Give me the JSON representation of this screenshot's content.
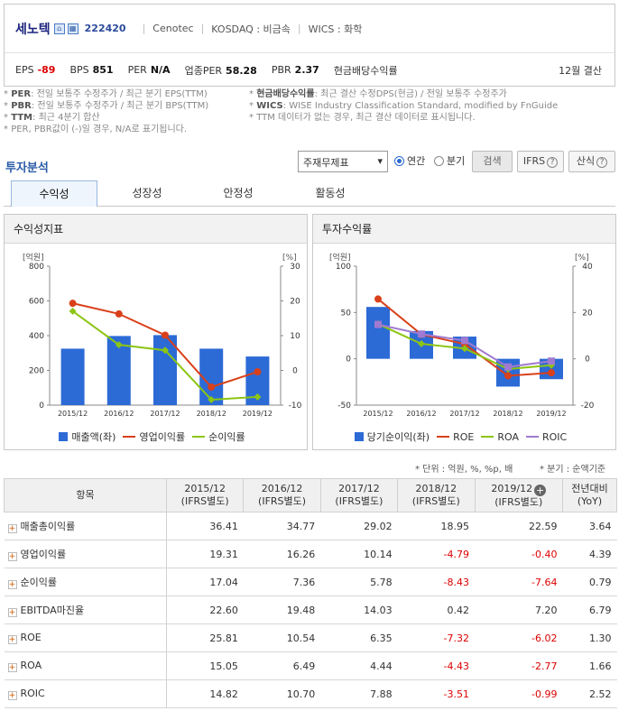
{
  "header": {
    "company": "세노텍",
    "code": "222420",
    "en_name": "Cenotec",
    "market": "KOSDAQ : 비금속",
    "wics": "WICS : 화학",
    "metrics": [
      {
        "label": "EPS",
        "value": "-89"
      },
      {
        "label": "BPS",
        "value": "851"
      },
      {
        "label": "PER",
        "value": "N/A"
      },
      {
        "label": "업종PER",
        "value": "58.28"
      },
      {
        "label": "PBR",
        "value": "2.37"
      }
    ],
    "dividend_label": "현금배당수익률",
    "settle": "12월 결산"
  },
  "notes": {
    "left": [
      {
        "key": "PER",
        "text": ": 전일 보통주 수정주가 / 최근 분기 EPS(TTM)"
      },
      {
        "key": "PBR",
        "text": ": 전일 보통주 수정주가 / 최근 분기 BPS(TTM)"
      },
      {
        "key": "TTM",
        "text": ": 최근 4분기 합산"
      },
      {
        "key": "",
        "text": "PER, PBR값이 (-)일 경우, N/A로 표기됩니다."
      }
    ],
    "right": [
      {
        "key": "현금배당수익률",
        "text": ": 최근 결산 수정DPS(현금) / 전일 보통주 수정주가"
      },
      {
        "key": "WICS",
        "text": ": WISE Industry Classification Standard, modified by FnGuide"
      },
      {
        "key": "",
        "text": "TTM 데이터가 없는 경우, 최근 결산 데이터로 표시됩니다."
      }
    ]
  },
  "section_title": "투자분석",
  "controls": {
    "select": "주재무제표",
    "radio_annual": "연간",
    "radio_quarter": "분기",
    "search": "검색",
    "ifrs": "IFRS",
    "formula": "산식"
  },
  "tabs": [
    "수익성",
    "성장성",
    "안정성",
    "활동성"
  ],
  "chart_left_title": "수익성지표",
  "chart_right_title": "투자수익률",
  "unit_note": "* 단위 : 억원, %, %p, 배",
  "quarter_note": "* 분기 : 순액기준",
  "chart_data": [
    {
      "type": "bar",
      "categories": [
        "2015/12",
        "2016/12",
        "2017/12",
        "2018/12",
        "2019/12"
      ],
      "left_unit": "[억원]",
      "right_unit": "[%]",
      "ylim_left": [
        0,
        800
      ],
      "yticks_left": [
        "800",
        "600",
        "400",
        "200",
        "0"
      ],
      "ylim_right": [
        -10,
        30
      ],
      "yticks_right": [
        "30",
        "20",
        "10",
        "0",
        "-10"
      ],
      "series": [
        {
          "name": "매출액(좌)",
          "type": "bar",
          "axis": "left",
          "color": "#2c6ad6",
          "values": [
            325,
            398,
            403,
            325,
            280
          ]
        },
        {
          "name": "영업이익률",
          "type": "line",
          "axis": "right",
          "color": "#d9401a",
          "values": [
            19.31,
            16.26,
            10.14,
            -4.79,
            -0.4
          ]
        },
        {
          "name": "순이익률",
          "type": "line",
          "axis": "right",
          "color": "#8cc514",
          "values": [
            17.04,
            7.36,
            5.78,
            -8.43,
            -7.64
          ]
        }
      ]
    },
    {
      "type": "bar",
      "categories": [
        "2015/12",
        "2016/12",
        "2017/12",
        "2018/12",
        "2019/12"
      ],
      "left_unit": "[억원]",
      "right_unit": "[%]",
      "ylim_left": [
        -50,
        100
      ],
      "yticks_left": [
        "100",
        "50",
        "0",
        "-50"
      ],
      "ylim_right": [
        -20,
        40
      ],
      "yticks_right": [
        "40",
        "20",
        "0",
        "-20"
      ],
      "series": [
        {
          "name": "당기순이익(좌)",
          "type": "bar",
          "axis": "left",
          "color": "#2c6ad6",
          "values": [
            56,
            30,
            24,
            -30,
            -22
          ]
        },
        {
          "name": "ROE",
          "type": "line",
          "axis": "right",
          "color": "#d9401a",
          "values": [
            25.81,
            10.54,
            6.35,
            -7.32,
            -6.02
          ]
        },
        {
          "name": "ROA",
          "type": "line",
          "axis": "right",
          "color": "#8cc514",
          "values": [
            15.05,
            6.49,
            4.44,
            -4.43,
            -2.77
          ]
        },
        {
          "name": "ROIC",
          "type": "line",
          "axis": "right",
          "color": "#a07ad0",
          "values": [
            14.82,
            10.7,
            7.88,
            -3.51,
            -0.99
          ]
        }
      ]
    }
  ],
  "table": {
    "header_item": "항목",
    "columns": [
      {
        "line1": "2015/12",
        "line2": "(IFRS별도)"
      },
      {
        "line1": "2016/12",
        "line2": "(IFRS별도)"
      },
      {
        "line1": "2017/12",
        "line2": "(IFRS별도)"
      },
      {
        "line1": "2018/12",
        "line2": "(IFRS별도)"
      },
      {
        "line1": "2019/12",
        "line2": "(IFRS별도)"
      },
      {
        "line1": "전년대비",
        "line2": "(YoY)"
      }
    ],
    "rows": [
      {
        "label": "매출총이익률",
        "values": [
          "36.41",
          "34.77",
          "29.02",
          "18.95",
          "22.59",
          "3.64"
        ]
      },
      {
        "label": "영업이익률",
        "values": [
          "19.31",
          "16.26",
          "10.14",
          "-4.79",
          "-0.40",
          "4.39"
        ]
      },
      {
        "label": "순이익률",
        "values": [
          "17.04",
          "7.36",
          "5.78",
          "-8.43",
          "-7.64",
          "0.79"
        ]
      },
      {
        "label": "EBITDA마진율",
        "values": [
          "22.60",
          "19.48",
          "14.03",
          "0.42",
          "7.20",
          "6.79"
        ]
      },
      {
        "label": "ROE",
        "values": [
          "25.81",
          "10.54",
          "6.35",
          "-7.32",
          "-6.02",
          "1.30"
        ]
      },
      {
        "label": "ROA",
        "values": [
          "15.05",
          "6.49",
          "4.44",
          "-4.43",
          "-2.77",
          "1.66"
        ]
      },
      {
        "label": "ROIC",
        "values": [
          "14.82",
          "10.70",
          "7.88",
          "-3.51",
          "-0.99",
          "2.52"
        ]
      }
    ]
  }
}
